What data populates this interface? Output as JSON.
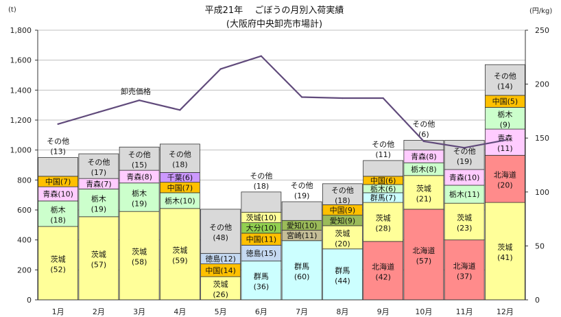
{
  "chart_data": {
    "type": "bar",
    "subtype": "stacked-bar-with-line",
    "title": "平成21年　 ごぼうの月別入荷実績",
    "subtitle": "(大阪府中央卸売市場計)",
    "y_left_unit": "(t)",
    "y_right_unit": "(円/kg)",
    "ylim_left": [
      0,
      1800
    ],
    "ylim_right": [
      0,
      250
    ],
    "y_left_ticks": [
      "0",
      "200",
      "400",
      "600",
      "800",
      "1,000",
      "1,200",
      "1,400",
      "1,600",
      "1,800"
    ],
    "y_right_ticks": [
      "0",
      "50",
      "100",
      "150",
      "200",
      "250"
    ],
    "categories": [
      "1月",
      "2月",
      "3月",
      "4月",
      "5月",
      "6月",
      "7月",
      "8月",
      "9月",
      "10月",
      "11月",
      "12月"
    ],
    "price_line_label": "卸売価格",
    "price": [
      163,
      174,
      185,
      176,
      214,
      226,
      188,
      187,
      187,
      147,
      141,
      148
    ],
    "bars": [
      {
        "month": "1月",
        "segments": [
          {
            "name": "茨城",
            "value": 490,
            "pct": "(52)"
          },
          {
            "name": "栃木",
            "value": 170,
            "pct": "(18)"
          },
          {
            "name": "青森",
            "value": 95,
            "pct": "(10)"
          },
          {
            "name": "中国",
            "value": 70,
            "pct": "(7)"
          },
          {
            "name": "その他",
            "value": 125,
            "pct": "(13)"
          }
        ]
      },
      {
        "month": "2月",
        "segments": [
          {
            "name": "茨城",
            "value": 555,
            "pct": "(57)"
          },
          {
            "name": "栃木",
            "value": 185,
            "pct": "(19)"
          },
          {
            "name": "青森",
            "value": 70,
            "pct": "(7)"
          },
          {
            "name": "その他",
            "value": 165,
            "pct": "(17)"
          }
        ]
      },
      {
        "month": "3月",
        "segments": [
          {
            "name": "茨城",
            "value": 590,
            "pct": "(58)"
          },
          {
            "name": "栃木",
            "value": 190,
            "pct": "(19)"
          },
          {
            "name": "青森",
            "value": 85,
            "pct": "(8)"
          },
          {
            "name": "その他",
            "value": 155,
            "pct": "(15)"
          }
        ]
      },
      {
        "month": "4月",
        "segments": [
          {
            "name": "茨城",
            "value": 610,
            "pct": "(59)"
          },
          {
            "name": "栃木",
            "value": 105,
            "pct": "(10)"
          },
          {
            "name": "中国",
            "value": 70,
            "pct": "(7)"
          },
          {
            "name": "千葉",
            "value": 65,
            "pct": "(6)"
          },
          {
            "name": "その他",
            "value": 190,
            "pct": "(18)"
          }
        ]
      },
      {
        "month": "5月",
        "segments": [
          {
            "name": "茨城",
            "value": 155,
            "pct": "(26)"
          },
          {
            "name": "中国",
            "value": 85,
            "pct": "(14)"
          },
          {
            "name": "徳島",
            "value": 70,
            "pct": "(12)"
          },
          {
            "name": "その他",
            "value": 295,
            "pct": "(48)"
          }
        ]
      },
      {
        "month": "6月",
        "segments": [
          {
            "name": "群馬",
            "value": 260,
            "pct": "(36)"
          },
          {
            "name": "徳島",
            "value": 105,
            "pct": "(15)"
          },
          {
            "name": "中国",
            "value": 80,
            "pct": "(11)"
          },
          {
            "name": "大分",
            "value": 70,
            "pct": "(10)"
          },
          {
            "name": "茨城",
            "value": 70,
            "pct": "(10)"
          },
          {
            "name": "その他",
            "value": 135,
            "pct": "(18)"
          }
        ]
      },
      {
        "month": "7月",
        "segments": [
          {
            "name": "群馬",
            "value": 395,
            "pct": "(60)"
          },
          {
            "name": "宮崎",
            "value": 70,
            "pct": "(11)"
          },
          {
            "name": "愛知",
            "value": 65,
            "pct": "(10)"
          },
          {
            "name": "その他",
            "value": 125,
            "pct": "(19)"
          }
        ]
      },
      {
        "month": "8月",
        "segments": [
          {
            "name": "群馬",
            "value": 340,
            "pct": "(44)"
          },
          {
            "name": "茨城",
            "value": 155,
            "pct": "(20)"
          },
          {
            "name": "愛知",
            "value": 70,
            "pct": "(9)"
          },
          {
            "name": "中国",
            "value": 70,
            "pct": "(9)"
          },
          {
            "name": "その他",
            "value": 140,
            "pct": "(18)"
          }
        ]
      },
      {
        "month": "9月",
        "segments": [
          {
            "name": "北海道",
            "value": 390,
            "pct": "(42)"
          },
          {
            "name": "茨城",
            "value": 260,
            "pct": "(28)"
          },
          {
            "name": "群馬",
            "value": 65,
            "pct": "(7)"
          },
          {
            "name": "栃木",
            "value": 55,
            "pct": "(6)"
          },
          {
            "name": "中国",
            "value": 55,
            "pct": "(6)"
          },
          {
            "name": "その他",
            "value": 105,
            "pct": "(11)"
          }
        ]
      },
      {
        "month": "10月",
        "segments": [
          {
            "name": "北海道",
            "value": 605,
            "pct": "(57)"
          },
          {
            "name": "茨城",
            "value": 225,
            "pct": "(21)"
          },
          {
            "name": "栃木",
            "value": 85,
            "pct": "(8)"
          },
          {
            "name": "青森",
            "value": 85,
            "pct": "(8)"
          },
          {
            "name": "その他",
            "value": 65,
            "pct": "(6)"
          }
        ]
      },
      {
        "month": "11月",
        "segments": [
          {
            "name": "北海道",
            "value": 400,
            "pct": "(37)"
          },
          {
            "name": "茨城",
            "value": 245,
            "pct": "(23)"
          },
          {
            "name": "栃木",
            "value": 120,
            "pct": "(11)"
          },
          {
            "name": "青森",
            "value": 105,
            "pct": "(10)"
          },
          {
            "name": "その他",
            "value": 195,
            "pct": "(19)"
          }
        ]
      },
      {
        "month": "12月",
        "segments": [
          {
            "name": "茨城",
            "value": 650,
            "pct": "(41)"
          },
          {
            "name": "北海道",
            "value": 315,
            "pct": "(20)"
          },
          {
            "name": "青森",
            "value": 175,
            "pct": "(11)"
          },
          {
            "name": "栃木",
            "value": 145,
            "pct": "(9)"
          },
          {
            "name": "中国",
            "value": 80,
            "pct": "(5)"
          },
          {
            "name": "その他",
            "value": 205,
            "pct": "(14)"
          }
        ]
      }
    ],
    "colors": {
      "茨城": "#ffff99",
      "栃木": "#ccffcc",
      "青森": "#ffccff",
      "中国": "#ffc000",
      "千葉": "#cc99ff",
      "徳島": "#c5d9f1",
      "群馬": "#ccffff",
      "大分": "#92d050",
      "愛知": "#9bbb59",
      "宮崎": "#c4bd97",
      "北海道": "#ff8b8b",
      "その他": "#d9d9d9",
      "price_line": "#604a7b"
    },
    "grid": true
  }
}
